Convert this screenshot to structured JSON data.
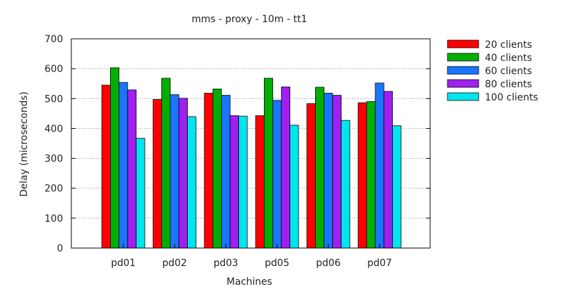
{
  "chart_data": {
    "type": "bar",
    "title": "mms - proxy - 10m - tt1",
    "xlabel": "Machines",
    "ylabel": "Delay (microseconds)",
    "ylim": [
      0,
      700
    ],
    "yticks": [
      0,
      100,
      200,
      300,
      400,
      500,
      600,
      700
    ],
    "grid": true,
    "legend_position": "top-right (outside plot)",
    "categories": [
      "pd01",
      "pd02",
      "pd03",
      "pd05",
      "pd06",
      "pd07"
    ],
    "series": [
      {
        "name": "20 clients",
        "color": "#ff0000",
        "values": [
          545,
          497,
          518,
          443,
          483,
          486
        ]
      },
      {
        "name": "40 clients",
        "color": "#00b000",
        "values": [
          603,
          568,
          532,
          568,
          538,
          490
        ]
      },
      {
        "name": "60 clients",
        "color": "#1a75ff",
        "values": [
          554,
          513,
          511,
          494,
          518,
          552
        ]
      },
      {
        "name": "80 clients",
        "color": "#a020f0",
        "values": [
          529,
          501,
          443,
          539,
          511,
          524
        ]
      },
      {
        "name": "100 clients",
        "color": "#00e5ee",
        "values": [
          367,
          439,
          441,
          411,
          427,
          409
        ]
      }
    ]
  }
}
